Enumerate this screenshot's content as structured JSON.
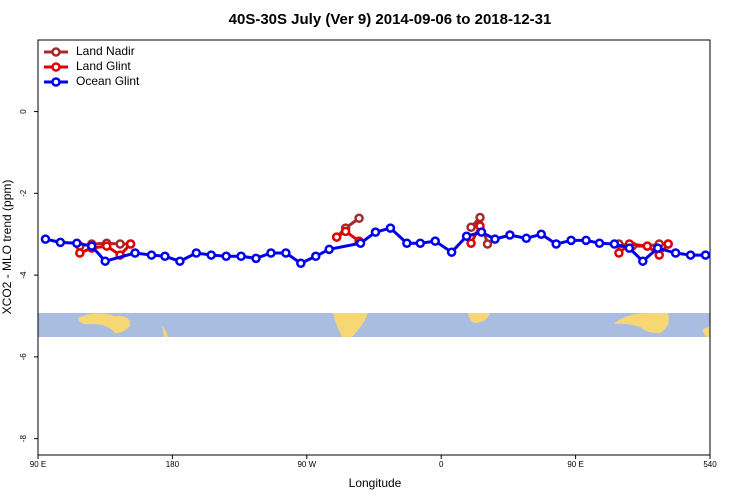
{
  "chart_data": {
    "type": "line",
    "title": "40S-30S July (Ver 9)   2014-09-06 to 2018-12-31",
    "x_label": "Longitude",
    "y_label": "XCO2 - MLO trend (ppm)",
    "xlim": [
      90,
      540
    ],
    "ylim": [
      -8.4,
      1.75
    ],
    "xticks": [
      {
        "value": 90,
        "label": "90 E"
      },
      180,
      {
        "value": 270,
        "label": "90 W"
      },
      {
        "value": 360,
        "label": "0"
      },
      {
        "value": 450,
        "label": "90 E"
      },
      540
    ],
    "yticks": [
      0,
      -2,
      -4,
      -6,
      -8
    ],
    "legend": "top-left",
    "series": [
      {
        "name": "Land Nadir",
        "color": "#a52a2a",
        "x": [
          118,
          126,
          136,
          145,
          152,
          null,
          290,
          296,
          305,
          null,
          380,
          386,
          391,
          null,
          479,
          488,
          498,
          506,
          512
        ],
        "values": [
          -3.29,
          -3.24,
          -3.22,
          -3.24,
          -3.24,
          null,
          -3.07,
          -2.85,
          -2.61,
          null,
          -2.83,
          -2.59,
          -3.24,
          null,
          -3.24,
          -3.29,
          -3.29,
          -3.24,
          -3.24
        ]
      },
      {
        "name": "Land Glint",
        "color": "#e00000",
        "x": [
          118,
          126,
          136,
          145,
          152,
          null,
          290,
          296,
          305,
          null,
          380,
          386,
          null,
          479,
          486,
          498,
          506,
          512
        ],
        "values": [
          -3.46,
          -3.34,
          -3.29,
          -3.51,
          -3.24,
          null,
          -3.07,
          -2.93,
          -3.17,
          null,
          -3.22,
          -2.8,
          null,
          -3.46,
          -3.24,
          -3.29,
          -3.51,
          -3.24
        ]
      },
      {
        "name": "Ocean Glint",
        "color": "#0000ee",
        "x": [
          95,
          105,
          116,
          126,
          135,
          155,
          166,
          175,
          185,
          196,
          206,
          216,
          226,
          236,
          246,
          256,
          266,
          276,
          285,
          306,
          316,
          326,
          337,
          346,
          356,
          367,
          377,
          387,
          396,
          406,
          417,
          427,
          437,
          447,
          457,
          466,
          476,
          486,
          495,
          505,
          517,
          527,
          537
        ],
        "values": [
          -3.12,
          -3.2,
          -3.22,
          -3.29,
          -3.66,
          -3.46,
          -3.51,
          -3.54,
          -3.66,
          -3.46,
          -3.51,
          -3.54,
          -3.54,
          -3.59,
          -3.46,
          -3.46,
          -3.71,
          -3.54,
          -3.37,
          -3.22,
          -2.95,
          -2.85,
          -3.22,
          -3.22,
          -3.17,
          -3.44,
          -3.05,
          -2.95,
          -3.12,
          -3.02,
          -3.1,
          -3.0,
          -3.24,
          -3.15,
          -3.15,
          -3.22,
          -3.24,
          -3.34,
          -3.66,
          -3.34,
          -3.46,
          -3.51,
          -3.51
        ]
      }
    ]
  }
}
